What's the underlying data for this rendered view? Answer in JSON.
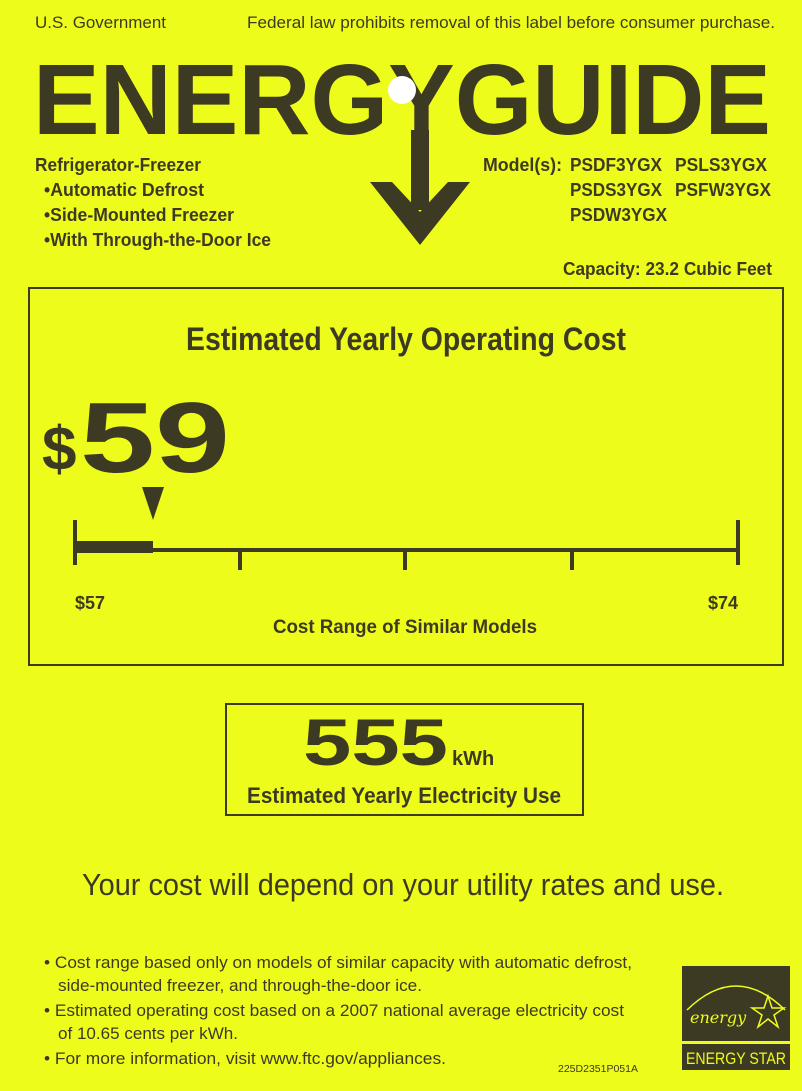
{
  "header": {
    "left": "U.S. Government",
    "right": "Federal law prohibits removal of this label before consumer purchase.",
    "logo": "ENERGYGUIDE"
  },
  "product": {
    "type": "Refrigerator-Freezer",
    "features": [
      "•Automatic Defrost",
      "•Side-Mounted Freezer",
      "•With Through-the-Door Ice"
    ],
    "models_label": "Model(s):",
    "models": [
      "PSDF3YGX",
      "PSLS3YGX",
      "PSDS3YGX",
      "PSFW3YGX",
      "PSDW3YGX"
    ],
    "capacity": "Capacity: 23.2 Cubic Feet"
  },
  "cost": {
    "title": "Estimated Yearly Operating Cost",
    "currency": "$",
    "value": "59",
    "range_min": "$57",
    "range_max": "$74",
    "range_label": "Cost Range of Similar Models",
    "value_number": 59,
    "min_number": 57,
    "max_number": 74
  },
  "electricity": {
    "value": "555",
    "unit": "kWh",
    "label": "Estimated Yearly Electricity Use"
  },
  "disclaimer": "Your cost will depend on your utility rates and use.",
  "notes": [
    "• Cost range based only on models of similar capacity with automatic defrost,",
    "side-mounted freezer, and through-the-door ice.",
    "• Estimated operating cost based on a 2007 national average electricity cost",
    "of 10.65 cents per kWh.",
    "• For more information, visit www.ftc.gov/appliances."
  ],
  "code": "225D2351P051A",
  "energy_star": {
    "script": "energy",
    "label": "ENERGY STAR"
  },
  "colors": {
    "background": "#eefc1c",
    "ink": "#3d3a24"
  }
}
